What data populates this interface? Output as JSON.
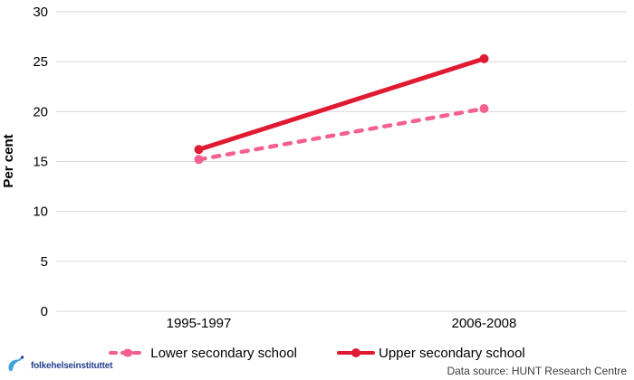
{
  "chart_data": {
    "type": "line",
    "title": "",
    "xlabel": "",
    "ylabel": "Per cent",
    "categories": [
      "1995-1997",
      "2006-2008"
    ],
    "series": [
      {
        "name": "Lower secondary school",
        "values": [
          15.2,
          20.3
        ],
        "color": "#f4618e",
        "style": "dashed"
      },
      {
        "name": "Upper secondary school",
        "values": [
          16.2,
          25.3
        ],
        "color": "#e11a33",
        "style": "solid"
      }
    ],
    "yticks": [
      0,
      5,
      10,
      15,
      20,
      25,
      30
    ],
    "ylim": [
      0,
      30
    ],
    "grid": true,
    "gridline_color": "#d9d9d9",
    "legend_position": "bottom"
  },
  "footer": {
    "logo_text": "folkehelseinstituttet",
    "data_source": "Data source: HUNT Research Centre"
  }
}
